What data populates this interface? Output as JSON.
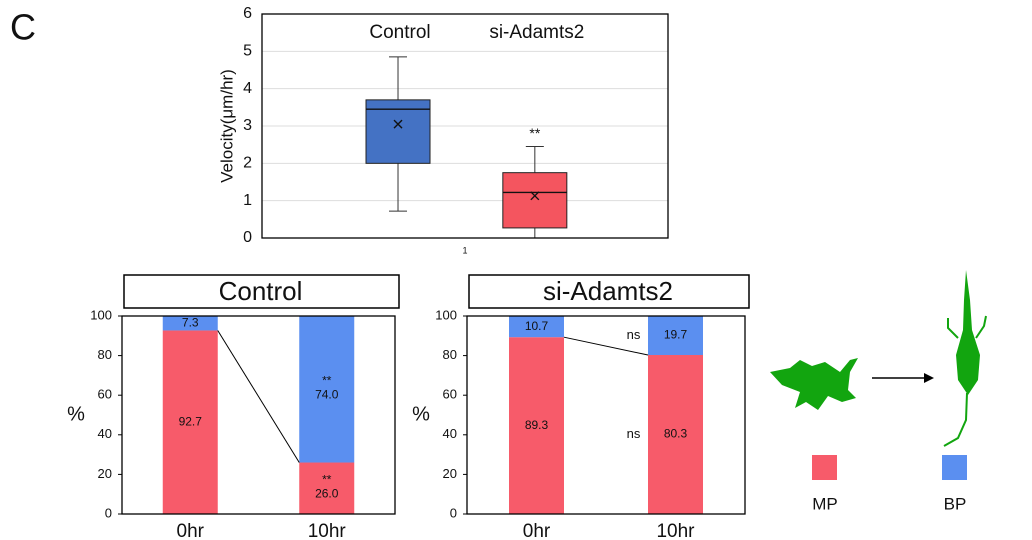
{
  "panel_label": "C",
  "legend": {
    "names": [
      "MP",
      "BP"
    ],
    "colors": [
      "#f75b6a",
      "#5b8ff0"
    ]
  },
  "chart_data": [
    {
      "type": "box",
      "y_label": "Velocity(μm/hr)",
      "categories": [
        "1"
      ],
      "ylim": [
        0,
        6
      ],
      "yticks": [
        0,
        1,
        2,
        3,
        4,
        5,
        6
      ],
      "grid": true,
      "series": [
        {
          "name": "Control",
          "color": "#4472c4",
          "whisker_low": 0.72,
          "q1": 2.0,
          "median": 3.45,
          "q3": 3.7,
          "whisker_high": 4.85,
          "mean": 3.05
        },
        {
          "name": "si-Adamts2",
          "color": "#f4555f",
          "whisker_low": 0,
          "q1": 0.27,
          "median": 1.22,
          "q3": 1.75,
          "whisker_high": 2.45,
          "mean": 1.13,
          "significance": "**"
        }
      ]
    },
    {
      "type": "stacked_bar",
      "title": "Control",
      "y_label": "%",
      "categories": [
        "0hr",
        "10hr"
      ],
      "ylim": [
        0,
        100
      ],
      "yticks": [
        0,
        20,
        40,
        60,
        80,
        100
      ],
      "series": [
        {
          "name": "MP",
          "color": "#f75b6a",
          "values": [
            92.7,
            26.0
          ],
          "value_labels": [
            "92.7",
            "26.0"
          ],
          "significance": [
            null,
            "**"
          ]
        },
        {
          "name": "BP",
          "color": "#5b8ff0",
          "values": [
            7.3,
            74.0
          ],
          "value_labels": [
            "7.3",
            "74.0"
          ],
          "significance": [
            null,
            "**"
          ]
        }
      ]
    },
    {
      "type": "stacked_bar",
      "title": "si-Adamts2",
      "y_label": "%",
      "categories": [
        "0hr",
        "10hr"
      ],
      "ylim": [
        0,
        100
      ],
      "yticks": [
        0,
        20,
        40,
        60,
        80,
        100
      ],
      "series": [
        {
          "name": "MP",
          "color": "#f75b6a",
          "values": [
            89.3,
            80.3
          ],
          "value_labels": [
            "89.3",
            "80.3"
          ],
          "significance": [
            null,
            "ns"
          ]
        },
        {
          "name": "BP",
          "color": "#5b8ff0",
          "values": [
            10.7,
            19.7
          ],
          "value_labels": [
            "10.7",
            "19.7"
          ],
          "significance": [
            null,
            "ns"
          ]
        }
      ]
    }
  ]
}
